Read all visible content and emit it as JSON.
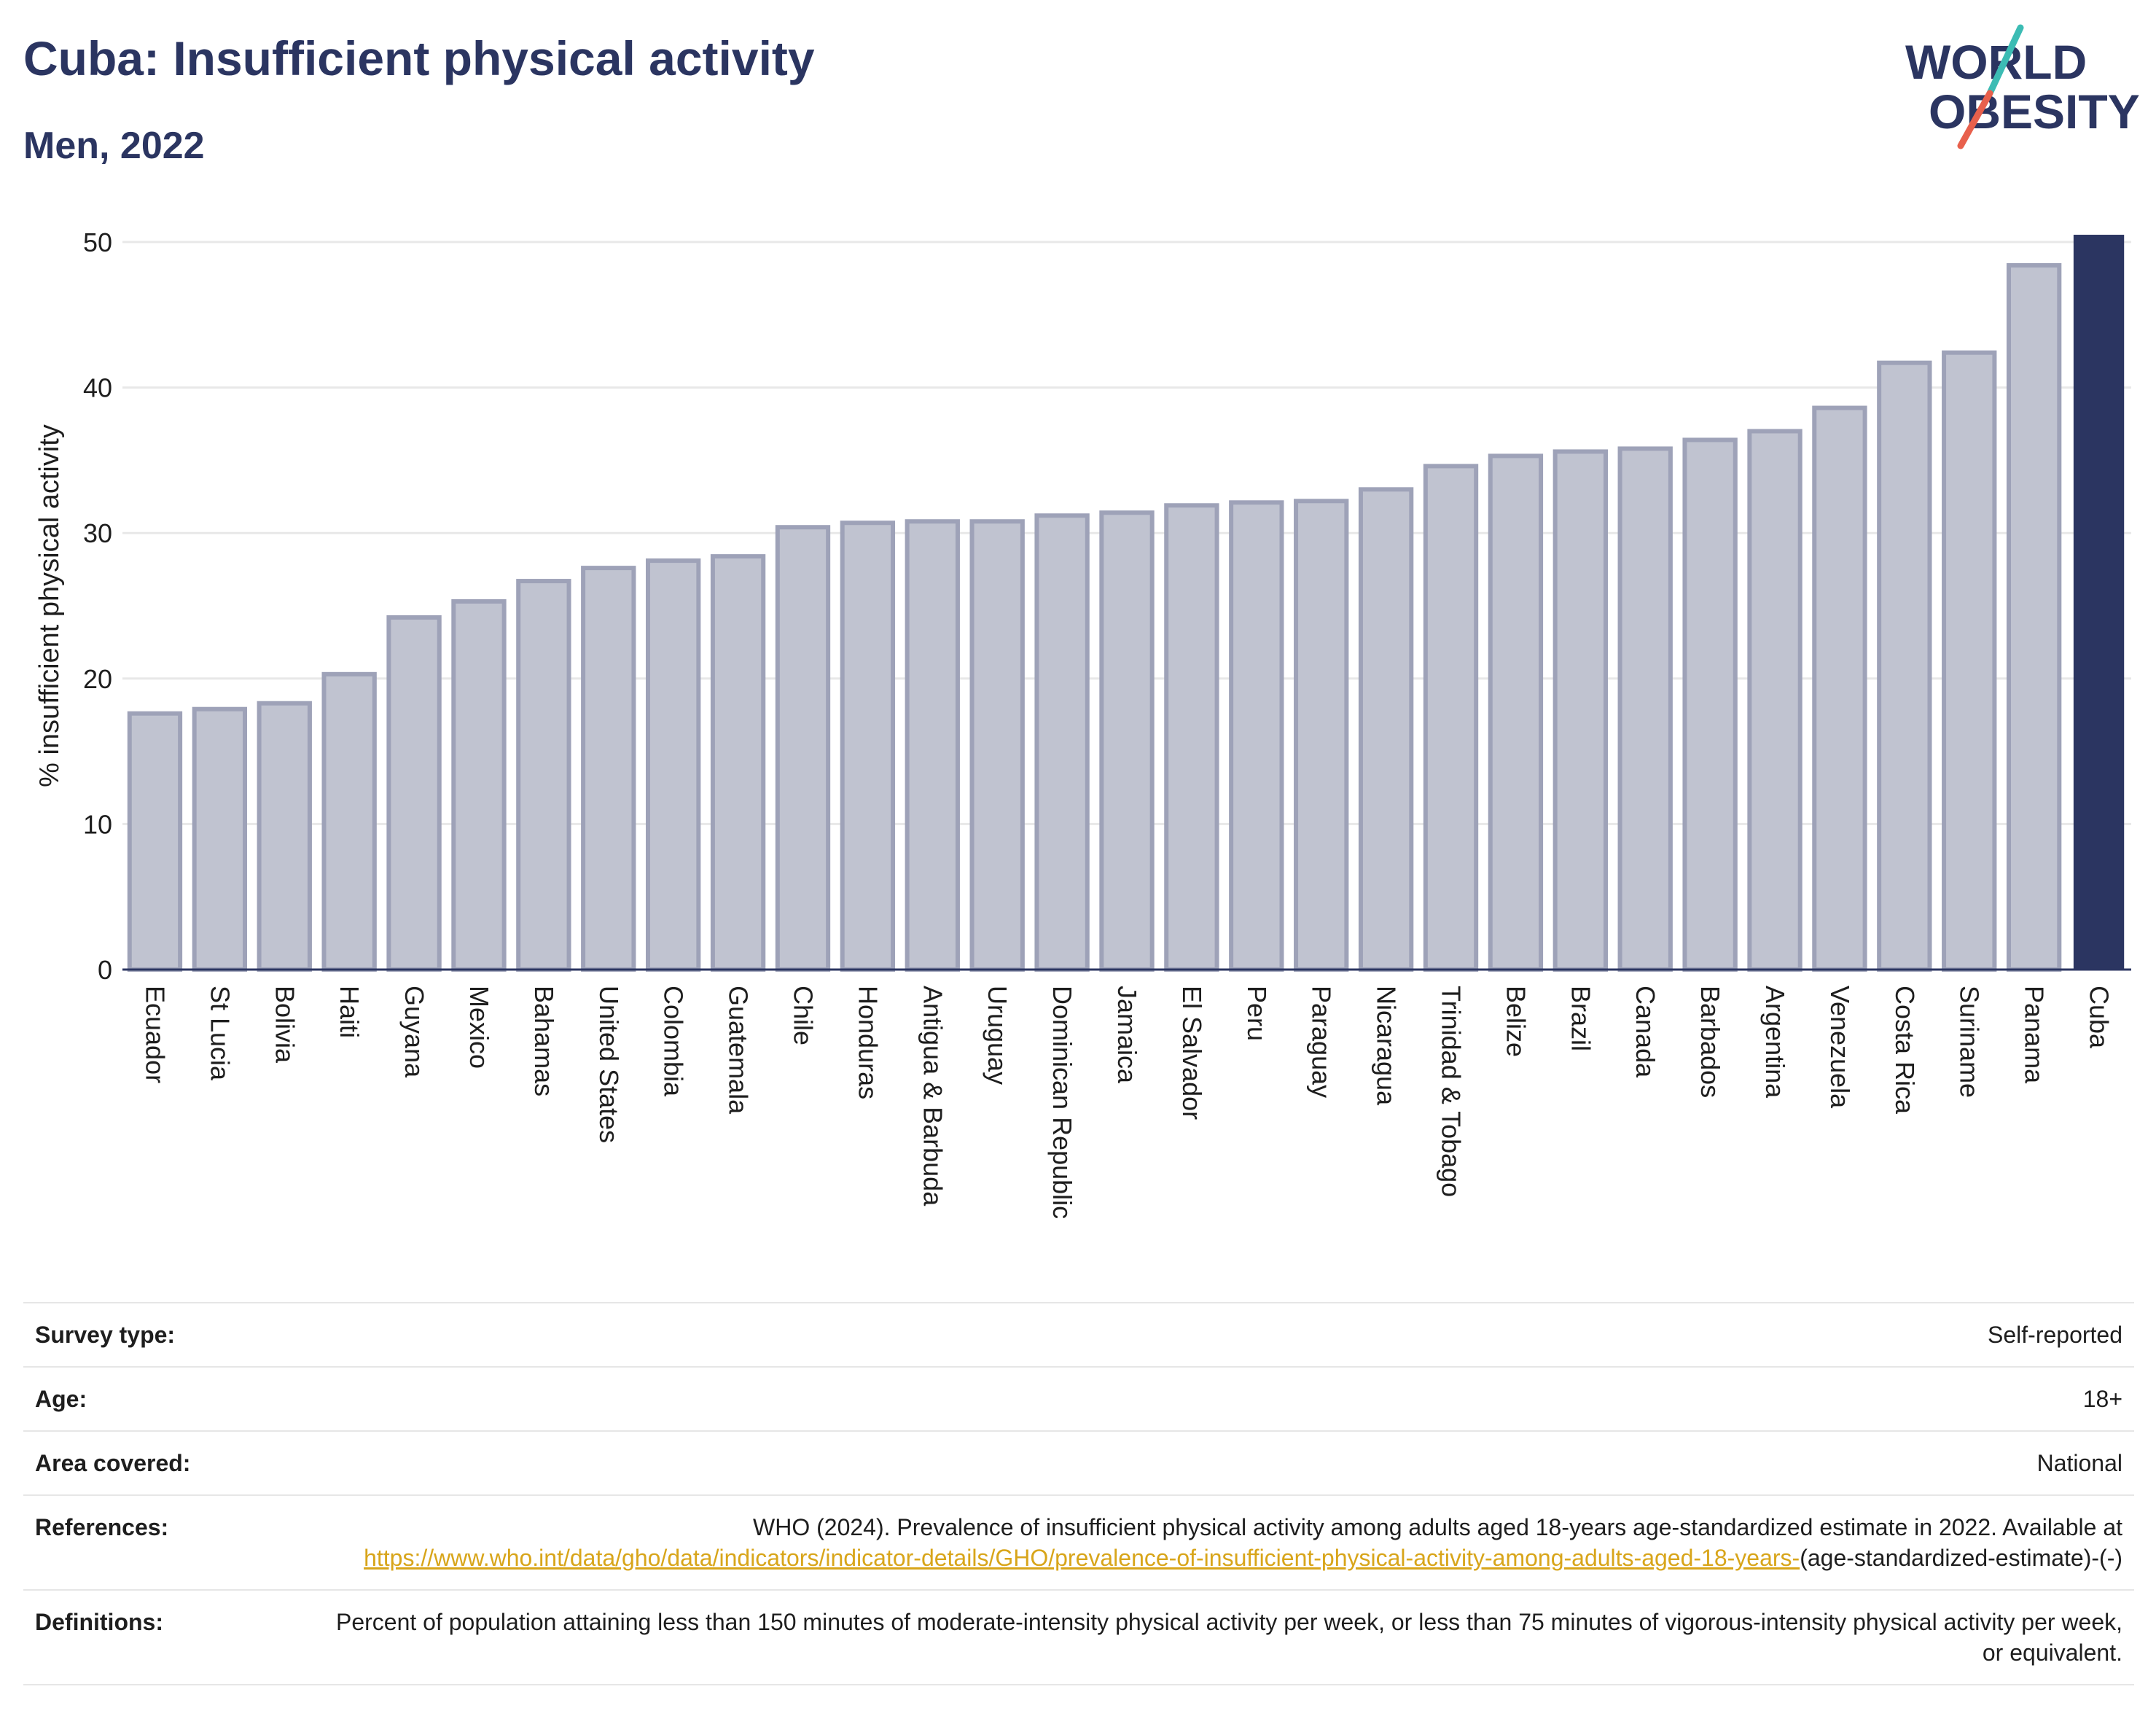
{
  "header": {
    "title": "Cuba: Insufficient physical activity",
    "subtitle": "Men, 2022"
  },
  "logo": {
    "line1": "WORLD",
    "line2": "OBESITY",
    "accent_teal": "#3cbcb4",
    "accent_coral": "#e8604c"
  },
  "colors": {
    "highlight": "#2b3561",
    "bar": "#c0c3d0",
    "bar_edge": "#9ea2b8",
    "text": "#2b3561"
  },
  "chart_data": {
    "type": "bar",
    "title": "",
    "xlabel": "",
    "ylabel": "% insufficient physical activity",
    "ylim": [
      0,
      50
    ],
    "yticks": [
      0,
      10,
      20,
      30,
      40,
      50
    ],
    "grid": true,
    "highlight": "Cuba",
    "categories": [
      "Ecuador",
      "St Lucia",
      "Bolivia",
      "Haiti",
      "Guyana",
      "Mexico",
      "Bahamas",
      "United States",
      "Colombia",
      "Guatemala",
      "Chile",
      "Honduras",
      "Antigua & Barbuda",
      "Uruguay",
      "Dominican Republic",
      "Jamaica",
      "El Salvador",
      "Peru",
      "Paraguay",
      "Nicaragua",
      "Trinidad & Tobago",
      "Belize",
      "Brazil",
      "Canada",
      "Barbados",
      "Argentina",
      "Venezuela",
      "Costa Rica",
      "Suriname",
      "Panama",
      "Cuba"
    ],
    "values": [
      17.6,
      17.9,
      18.3,
      20.3,
      24.2,
      25.3,
      26.7,
      27.6,
      28.1,
      28.4,
      30.4,
      30.7,
      30.8,
      30.8,
      31.2,
      31.4,
      31.9,
      32.1,
      32.2,
      33.0,
      34.6,
      35.3,
      35.6,
      35.8,
      36.4,
      37.0,
      38.6,
      41.7,
      42.4,
      48.4,
      50.5
    ]
  },
  "meta": {
    "survey_type": {
      "label": "Survey type:",
      "value": "Self-reported"
    },
    "age": {
      "label": "Age:",
      "value": "18+"
    },
    "area": {
      "label": "Area covered:",
      "value": "National"
    },
    "references": {
      "label": "References:",
      "text": "WHO (2024). Prevalence of insufficient physical activity among adults aged 18-years age-standardized estimate in 2022. Available at",
      "link": "https://www.who.int/data/gho/data/indicators/indicator-details/GHO/prevalence-of-insufficient-physical-activity-among-adults-aged-18-years-",
      "suffix": "(age-standardized-estimate)-(-)"
    },
    "definitions": {
      "label": "Definitions:",
      "value": "Percent of population attaining less than 150 minutes of moderate-intensity physical activity per week, or less than 75 minutes of vigorous-intensity physical activity per week, or equivalent."
    }
  }
}
